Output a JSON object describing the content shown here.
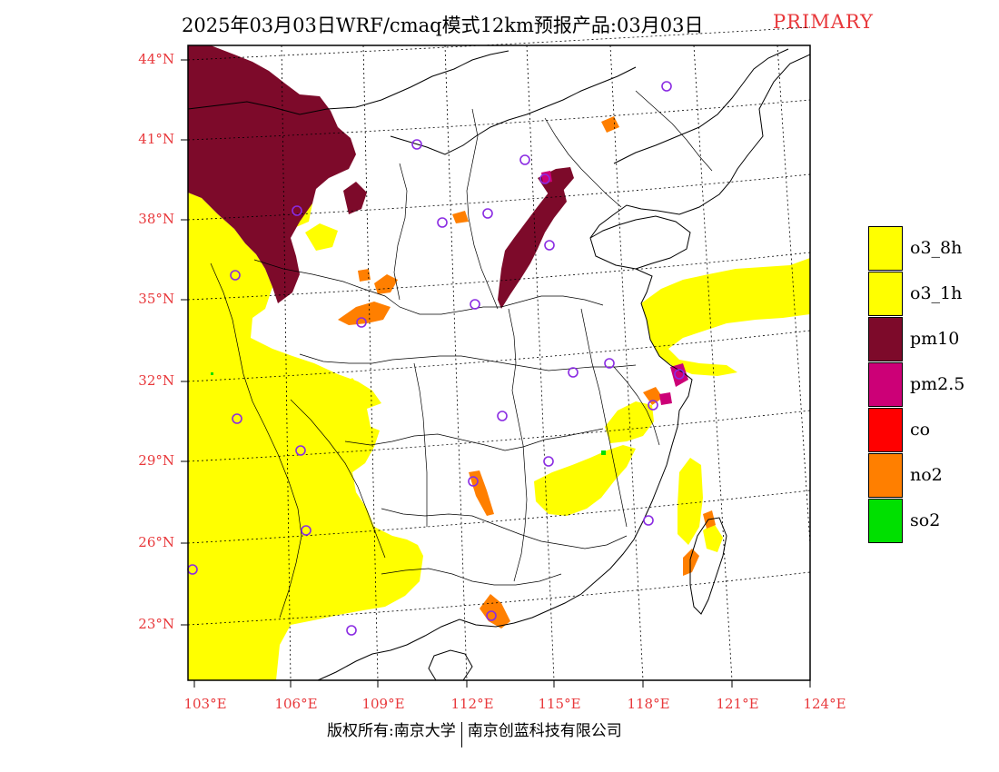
{
  "header": {
    "title": "2025年03月03日WRF/cmaq模式12km预报产品:03月03日",
    "mode": "PRIMARY"
  },
  "colors": {
    "o3_8h": "#ffff00",
    "o3_1h": "#ffff00",
    "pm10": "#7d0a2a",
    "pm2_5": "#cc0077",
    "co": "#ff0000",
    "no2": "#ff7f00",
    "so2": "#00e000",
    "axis_label": "#e8383b",
    "site_marker": "#8a2be2"
  },
  "axes": {
    "lat_labels": [
      "44°N",
      "41°N",
      "38°N",
      "35°N",
      "32°N",
      "29°N",
      "26°N",
      "23°N"
    ],
    "lon_labels": [
      "103°E",
      "106°E",
      "109°E",
      "112°E",
      "115°E",
      "118°E",
      "121°E",
      "124°E"
    ]
  },
  "legend": [
    {
      "label": "o3_8h",
      "color": "#ffff00"
    },
    {
      "label": "o3_1h",
      "color": "#ffff00"
    },
    {
      "label": "pm10",
      "color": "#7d0a2a"
    },
    {
      "label": "pm2.5",
      "color": "#cc0077"
    },
    {
      "label": "co",
      "color": "#ff0000"
    },
    {
      "label": "no2",
      "color": "#ff7f00"
    },
    {
      "label": "so2",
      "color": "#00e000"
    }
  ],
  "footer": {
    "left": "版权所有:南京大学",
    "right": "南京创蓝科技有限公司"
  }
}
